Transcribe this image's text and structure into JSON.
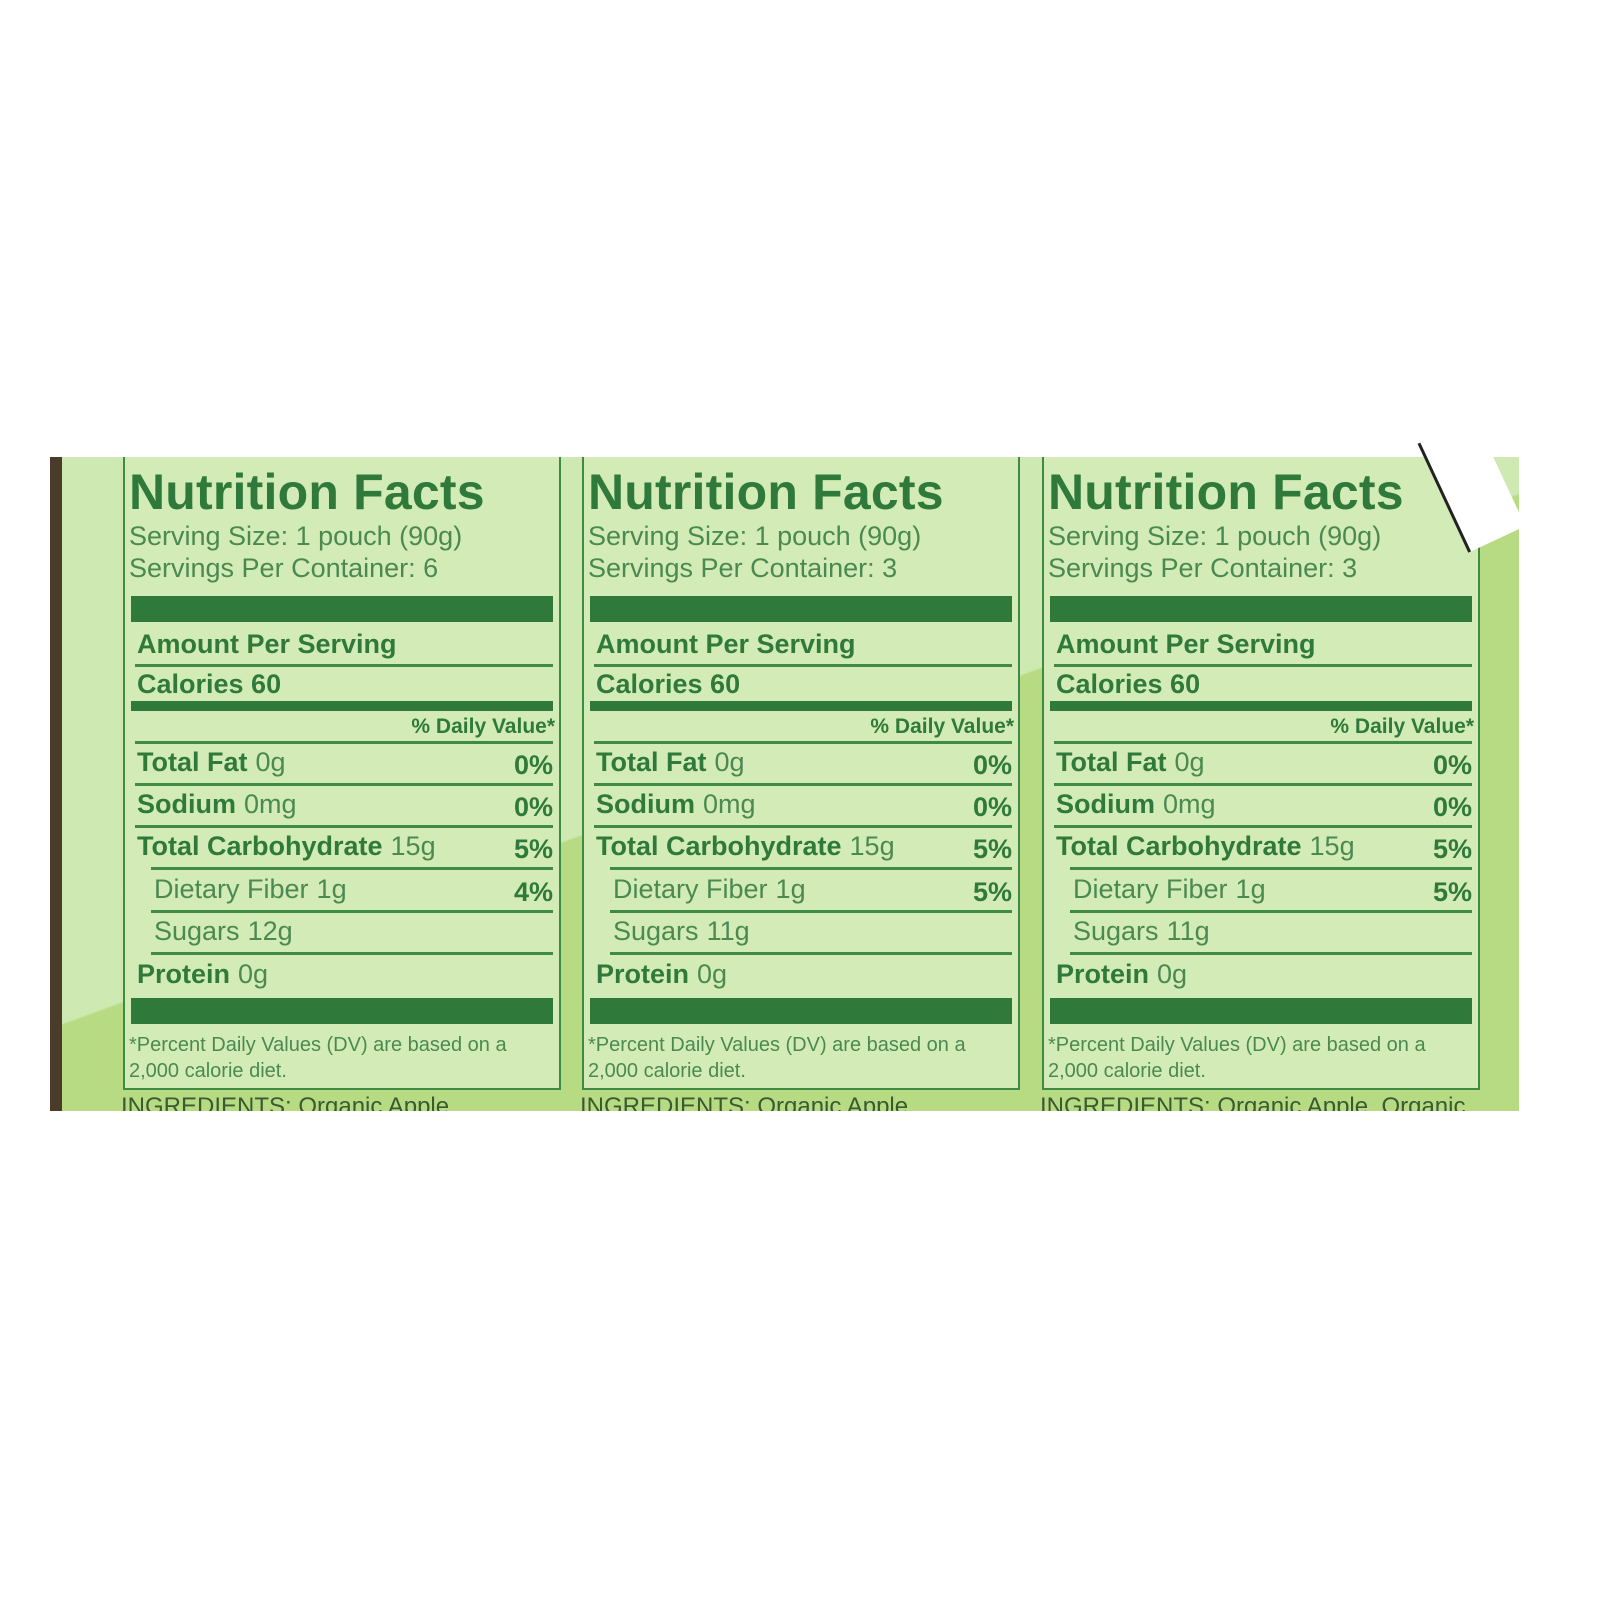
{
  "panels": [
    {
      "title": "Nutrition Facts",
      "serving_size": "Serving Size: 1 pouch (90g)",
      "servings_per_container": "Servings Per Container: 6",
      "amount_per_serving": "Amount Per Serving",
      "calories": "Calories 60",
      "daily_value_header": "% Daily Value*",
      "rows": [
        {
          "label": "Total Fat",
          "amount": "0g",
          "dv": "0%",
          "indent": false
        },
        {
          "label": "Sodium",
          "amount": "0mg",
          "dv": "0%",
          "indent": false
        },
        {
          "label": "Total Carbohydrate",
          "amount": "15g",
          "dv": "5%",
          "indent": false
        },
        {
          "label": "Dietary Fiber",
          "amount": "1g",
          "dv": "4%",
          "indent": true
        },
        {
          "label": "Sugars",
          "amount": "12g",
          "dv": "",
          "indent": true
        },
        {
          "label": "Protein",
          "amount": "0g",
          "dv": "",
          "indent": false
        }
      ],
      "footnote": "*Percent Daily Values (DV) are based on a 2,000 calorie diet.",
      "ingredients": "INGREDIENTS: Organic Apple"
    },
    {
      "title": "Nutrition Facts",
      "serving_size": "Serving Size: 1 pouch (90g)",
      "servings_per_container": "Servings Per Container: 3",
      "amount_per_serving": "Amount Per Serving",
      "calories": "Calories 60",
      "daily_value_header": "% Daily Value*",
      "rows": [
        {
          "label": "Total Fat",
          "amount": "0g",
          "dv": "0%",
          "indent": false
        },
        {
          "label": "Sodium",
          "amount": "0mg",
          "dv": "0%",
          "indent": false
        },
        {
          "label": "Total Carbohydrate",
          "amount": "15g",
          "dv": "5%",
          "indent": false
        },
        {
          "label": "Dietary Fiber",
          "amount": "1g",
          "dv": "5%",
          "indent": true
        },
        {
          "label": "Sugars",
          "amount": "11g",
          "dv": "",
          "indent": true
        },
        {
          "label": "Protein",
          "amount": "0g",
          "dv": "",
          "indent": false
        }
      ],
      "footnote": "*Percent Daily Values (DV) are based on a 2,000 calorie diet.",
      "ingredients": "INGREDIENTS: Organic Apple"
    },
    {
      "title": "Nutrition Facts",
      "serving_size": "Serving Size: 1 pouch (90g)",
      "servings_per_container": "Servings Per Container: 3",
      "amount_per_serving": "Amount Per Serving",
      "calories": "Calories 60",
      "daily_value_header": "% Daily Value*",
      "rows": [
        {
          "label": "Total Fat",
          "amount": "0g",
          "dv": "0%",
          "indent": false
        },
        {
          "label": "Sodium",
          "amount": "0mg",
          "dv": "0%",
          "indent": false
        },
        {
          "label": "Total Carbohydrate",
          "amount": "15g",
          "dv": "5%",
          "indent": false
        },
        {
          "label": "Dietary Fiber",
          "amount": "1g",
          "dv": "5%",
          "indent": true
        },
        {
          "label": "Sugars",
          "amount": "11g",
          "dv": "",
          "indent": true
        },
        {
          "label": "Protein",
          "amount": "0g",
          "dv": "",
          "indent": false
        }
      ],
      "footnote": "*Percent Daily Values (DV) are based on a 2,000 calorie diet.",
      "ingredients": "INGREDIENTS: Organic Apple, Organic"
    }
  ],
  "colors": {
    "label_green": "#2f7a3a",
    "background_green": "#c8e6a8"
  }
}
